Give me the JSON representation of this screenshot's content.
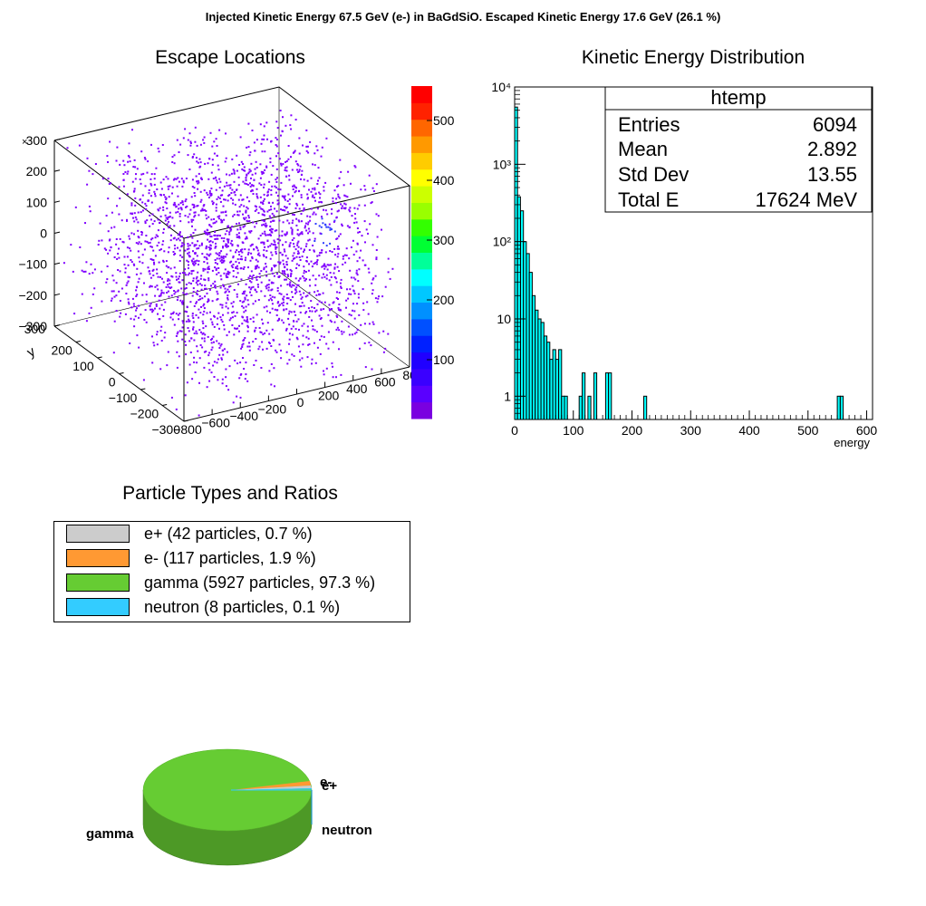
{
  "main_title": "Injected Kinetic Energy 67.5 GeV (e-) in BaGdSiO. Escaped Kinetic Energy 17.6 GeV (26.1 %)",
  "colors": {
    "scatter_points": "#8000ff",
    "scatter_hotspot": "#3040ff",
    "histogram_fill": "#00ffff",
    "positron": "#cccccc",
    "electron": "#ff9933",
    "gamma": "#66cc33",
    "gamma_side": "#4d9926",
    "neutron": "#33ccff"
  },
  "chart_data": [
    {
      "type": "scatter",
      "title": "Escape Locations",
      "xlabel": "",
      "ylabel": "y",
      "x_ticks": [
        "−800",
        "−600",
        "−400",
        "−200",
        "0",
        "200",
        "400",
        "600",
        "800"
      ],
      "y_ticks": [
        "−300",
        "−200",
        "−100",
        "0",
        "100",
        "200",
        "300"
      ],
      "z_ticks": [
        "−300",
        "−200",
        "−100",
        "0",
        "100",
        "200",
        "300"
      ],
      "z_axis_label": "×",
      "color_scale": {
        "ticks": [
          "100",
          "200",
          "300",
          "400",
          "500"
        ],
        "colors": [
          "#7a00e0",
          "#5a00ff",
          "#3a00ff",
          "#2000ff",
          "#0020ff",
          "#0050ff",
          "#0090ff",
          "#00c8ff",
          "#00ffff",
          "#00ff99",
          "#00ff33",
          "#33ff00",
          "#99ff00",
          "#ccff00",
          "#ffff00",
          "#ffcc00",
          "#ff9900",
          "#ff6600",
          "#ff2200",
          "#ff0000"
        ]
      },
      "entries": 6094
    },
    {
      "type": "bar",
      "title": "Kinetic Energy Distribution",
      "xlabel": "energy",
      "ylabel": "",
      "log_y": true,
      "xlim": [
        0,
        610
      ],
      "ylim": [
        0.5,
        10000
      ],
      "x_ticks": [
        "0",
        "100",
        "200",
        "300",
        "400",
        "500",
        "600"
      ],
      "y_ticks": [
        "1",
        "10",
        "10²",
        "10³",
        "10⁴"
      ],
      "bin_width": 5,
      "bins": [
        {
          "x": 0,
          "y": 5500
        },
        {
          "x": 5,
          "y": 380
        },
        {
          "x": 10,
          "y": 250
        },
        {
          "x": 15,
          "y": 100
        },
        {
          "x": 20,
          "y": 70
        },
        {
          "x": 25,
          "y": 40
        },
        {
          "x": 30,
          "y": 20
        },
        {
          "x": 35,
          "y": 13
        },
        {
          "x": 40,
          "y": 10
        },
        {
          "x": 45,
          "y": 9
        },
        {
          "x": 50,
          "y": 6
        },
        {
          "x": 55,
          "y": 5
        },
        {
          "x": 60,
          "y": 3
        },
        {
          "x": 65,
          "y": 4
        },
        {
          "x": 70,
          "y": 3
        },
        {
          "x": 75,
          "y": 4
        },
        {
          "x": 80,
          "y": 1
        },
        {
          "x": 85,
          "y": 1
        },
        {
          "x": 110,
          "y": 1
        },
        {
          "x": 115,
          "y": 2
        },
        {
          "x": 125,
          "y": 1
        },
        {
          "x": 135,
          "y": 2
        },
        {
          "x": 155,
          "y": 2
        },
        {
          "x": 160,
          "y": 2
        },
        {
          "x": 220,
          "y": 1
        },
        {
          "x": 550,
          "y": 1
        },
        {
          "x": 555,
          "y": 1
        }
      ],
      "stats": {
        "name": "htemp",
        "rows": [
          {
            "label": "Entries",
            "value": "6094"
          },
          {
            "label": "Mean",
            "value": "2.892"
          },
          {
            "label": "Std Dev",
            "value": "13.55"
          },
          {
            "label": "Total E",
            "value": "17624 MeV"
          }
        ]
      }
    },
    {
      "type": "pie",
      "title": "Particle Types and Ratios",
      "legend": [
        {
          "label": "e+ (42 particles, 0.7 %)",
          "color": "#cccccc"
        },
        {
          "label": "e- (117 particles, 1.9 %)",
          "color": "#ff9933"
        },
        {
          "label": "gamma (5927 particles, 97.3 %)",
          "color": "#66cc33"
        },
        {
          "label": "neutron (8 particles, 0.1 %)",
          "color": "#33ccff"
        }
      ],
      "slices": [
        {
          "name": "e+",
          "value": 0.7,
          "color": "#cccccc"
        },
        {
          "name": "e-",
          "value": 1.9,
          "color": "#ff9933"
        },
        {
          "name": "gamma",
          "value": 97.3,
          "color": "#66cc33"
        },
        {
          "name": "neutron",
          "value": 0.1,
          "color": "#33ccff"
        }
      ],
      "slice_labels": [
        "e-",
        "e+",
        "gamma",
        "neutron"
      ]
    }
  ]
}
